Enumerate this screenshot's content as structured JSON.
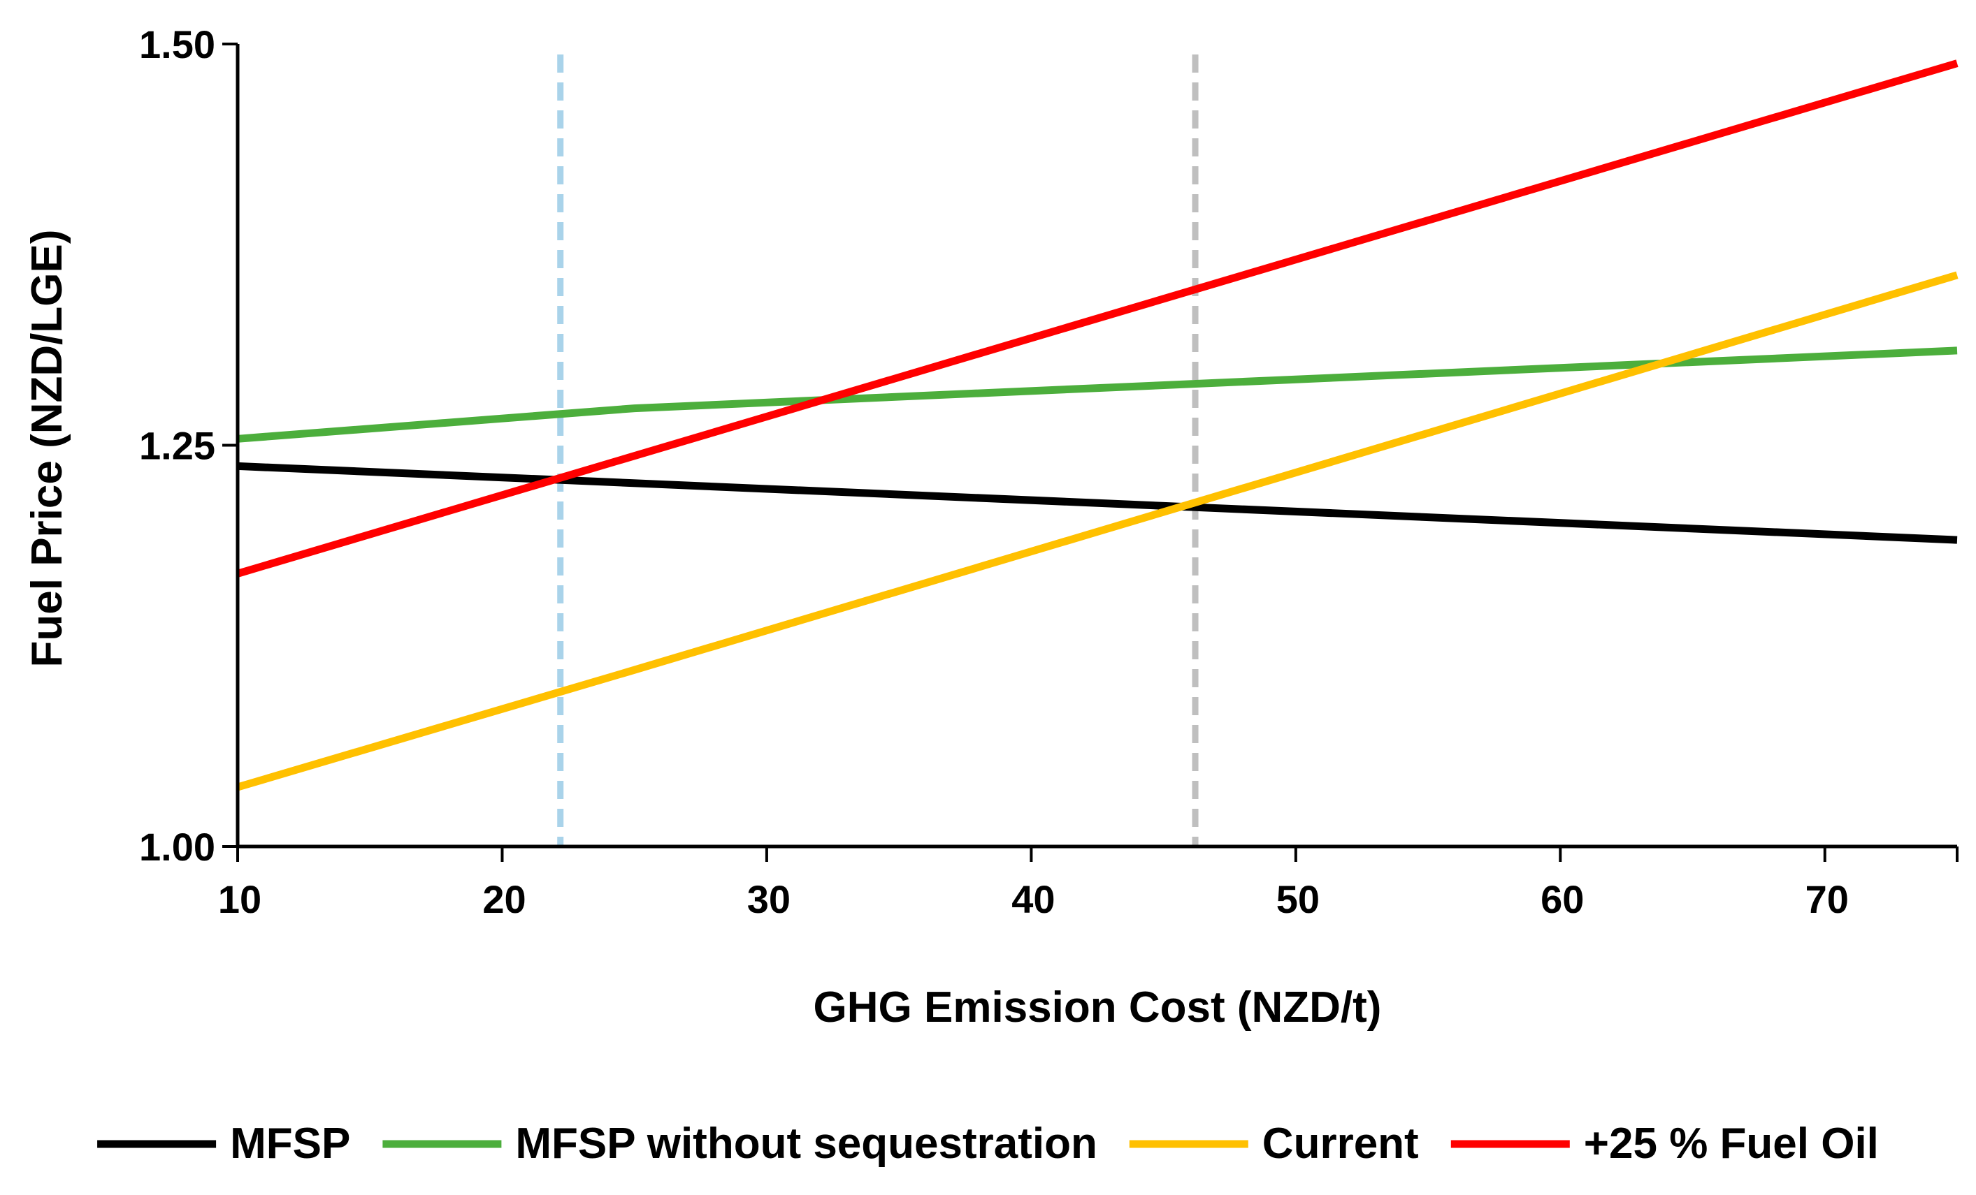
{
  "chart_data": {
    "type": "line",
    "xlabel": "GHG Emission Cost (NZD/t)",
    "ylabel": "Fuel Price (NZD/LGE)",
    "xlim": [
      10,
      75
    ],
    "ylim": [
      1.0,
      1.5
    ],
    "x_ticks": [
      "10",
      "20",
      "30",
      "40",
      "50",
      "60",
      "70"
    ],
    "y_ticks": [
      "1.00",
      "1.25",
      "1.50"
    ],
    "x_tick_values": [
      10,
      20,
      30,
      40,
      50,
      60,
      70
    ],
    "y_tick_values": [
      1.0,
      1.25,
      1.5
    ],
    "grid": false,
    "legend_position": "bottom",
    "series": [
      {
        "name": "MFSP",
        "color": "#000000",
        "x": [
          10,
          75
        ],
        "y": [
          1.237,
          1.191
        ]
      },
      {
        "name": "MFSP without sequestration",
        "color": "#4cae3c",
        "x": [
          10,
          25,
          75
        ],
        "y": [
          1.254,
          1.273,
          1.309
        ]
      },
      {
        "name": "Current",
        "color": "#ffc000",
        "x": [
          10,
          25,
          75
        ],
        "y": [
          1.037,
          1.11,
          1.356
        ]
      },
      {
        "name": "+25 % Fuel Oil",
        "color": "#ff0000",
        "x": [
          10,
          75
        ],
        "y": [
          1.17,
          1.488
        ]
      }
    ],
    "reference_lines": [
      {
        "x": 22.2,
        "color": "#a9d3ea",
        "style": "dashed"
      },
      {
        "x": 46.2,
        "color": "#bfbfbf",
        "style": "dashed"
      }
    ]
  }
}
